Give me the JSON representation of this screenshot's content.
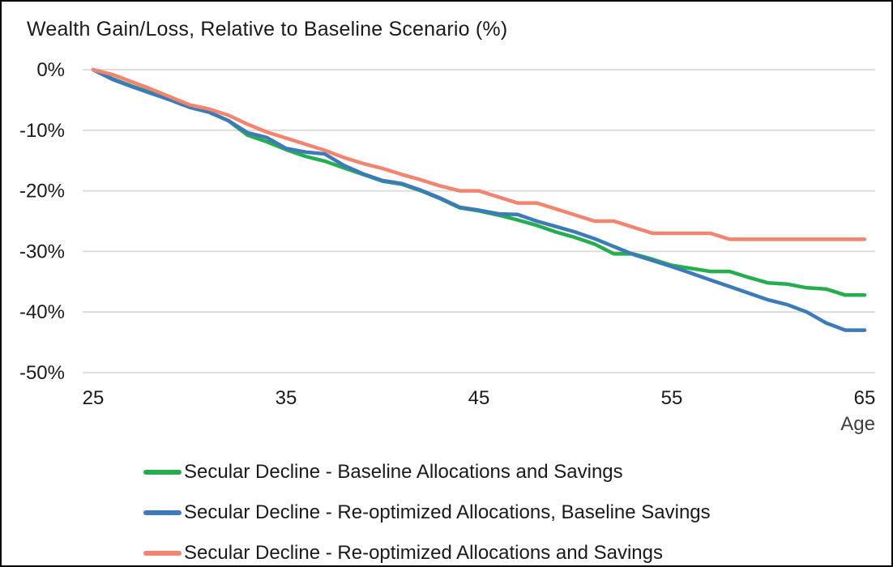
{
  "chart_data": {
    "type": "line",
    "title": "Wealth Gain/Loss, Relative to Baseline Scenario (%)",
    "xlabel": "Age",
    "ylabel": "",
    "xlim": [
      25,
      65
    ],
    "ylim": [
      -50,
      0
    ],
    "x_ticks": [
      25,
      35,
      45,
      55,
      65
    ],
    "y_ticks": [
      "0%",
      "-10%",
      "-20%",
      "-30%",
      "-40%",
      "-50%"
    ],
    "y_tick_values": [
      0,
      -10,
      -20,
      -30,
      -40,
      -50
    ],
    "grid": "horizontal",
    "legend_position": "bottom-left",
    "x": [
      25,
      26,
      27,
      28,
      29,
      30,
      31,
      32,
      33,
      34,
      35,
      36,
      37,
      38,
      39,
      40,
      41,
      42,
      43,
      44,
      45,
      46,
      47,
      48,
      49,
      50,
      51,
      52,
      53,
      54,
      55,
      56,
      57,
      58,
      59,
      60,
      61,
      62,
      63,
      64,
      65
    ],
    "series": [
      {
        "name": "Secular Decline - Baseline Allocations and Savings",
        "color": "#26AD4F",
        "values": [
          0,
          -1.5,
          -2.7,
          -3.8,
          -5.0,
          -6.2,
          -7.0,
          -8.4,
          -10.8,
          -11.9,
          -13.2,
          -14.3,
          -15.1,
          -16.2,
          -17.3,
          -18.4,
          -18.9,
          -20.0,
          -21.3,
          -22.8,
          -23.3,
          -24.0,
          -24.8,
          -25.7,
          -26.8,
          -27.7,
          -28.8,
          -30.4,
          -30.4,
          -31.3,
          -32.3,
          -32.8,
          -33.3,
          -33.3,
          -34.3,
          -35.2,
          -35.4,
          -36.0,
          -36.2,
          -37.2,
          -37.2
        ]
      },
      {
        "name": "Secular Decline - Re-optimized Allocations, Baseline Savings",
        "color": "#3C7BB8",
        "values": [
          0,
          -1.6,
          -2.8,
          -3.9,
          -5.0,
          -6.2,
          -7.0,
          -8.4,
          -10.4,
          -11.2,
          -13.0,
          -13.6,
          -13.9,
          -15.8,
          -17.2,
          -18.3,
          -18.8,
          -19.9,
          -21.2,
          -22.7,
          -23.2,
          -23.8,
          -23.9,
          -25.0,
          -25.9,
          -26.8,
          -27.9,
          -29.2,
          -30.5,
          -31.5,
          -32.5,
          -33.6,
          -34.7,
          -35.8,
          -36.9,
          -38.0,
          -38.8,
          -40.0,
          -41.8,
          -43.0,
          -43.0
        ]
      },
      {
        "name": "Secular Decline - Re-optimized Allocations and Savings",
        "color": "#F28570",
        "values": [
          0,
          -0.8,
          -2.0,
          -3.2,
          -4.5,
          -5.8,
          -6.5,
          -7.5,
          -9.0,
          -10.3,
          -11.3,
          -12.3,
          -13.3,
          -14.5,
          -15.5,
          -16.3,
          -17.3,
          -18.2,
          -19.2,
          -20.0,
          -20.0,
          -21.0,
          -22.0,
          -22.0,
          -23.0,
          -24.0,
          -25.0,
          -25.0,
          -26.0,
          -27.0,
          -27.0,
          -27.0,
          -27.0,
          -28.0,
          -28.0,
          -28.0,
          -28.0,
          -28.0,
          -28.0,
          -28.0,
          -28.0
        ]
      }
    ]
  },
  "colors": {
    "gridline": "#D9D9D9",
    "text": "#1A1A1A",
    "border": "#000000",
    "background": "#FFFFFF"
  }
}
